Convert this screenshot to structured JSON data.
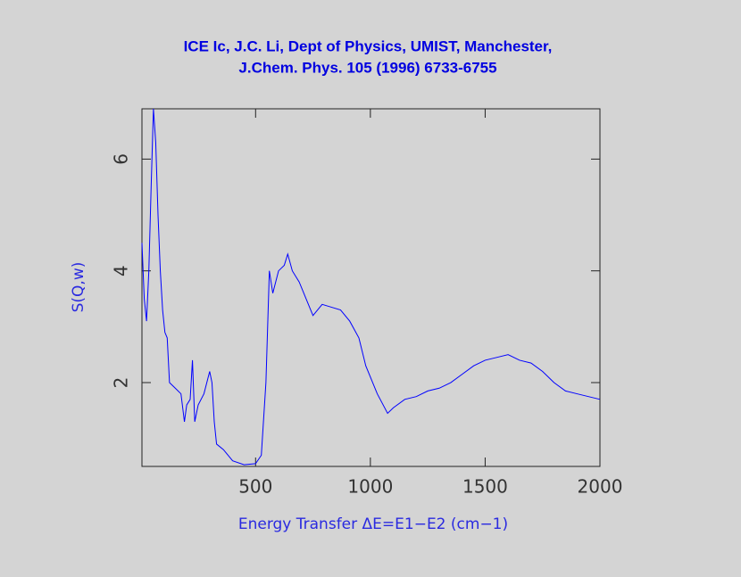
{
  "chart_data": {
    "type": "line",
    "title": [
      "ICE Ic, J.C. Li, Dept of Physics, UMIST, Manchester,",
      "J.Chem. Phys. 105 (1996) 6733-6755"
    ],
    "xlabel": "Energy Transfer ΔE=E1−E2 (cm−1)",
    "ylabel": "S(Q,w)",
    "xlim": [
      5,
      2000
    ],
    "ylim": [
      0.5,
      6.9
    ],
    "xticks": [
      500,
      1000,
      1500,
      2000
    ],
    "yticks": [
      2,
      4,
      6
    ],
    "x": [
      5,
      15,
      25,
      35,
      45,
      55,
      65,
      75,
      85,
      95,
      105,
      115,
      125,
      150,
      175,
      190,
      200,
      215,
      225,
      235,
      250,
      275,
      300,
      310,
      320,
      330,
      360,
      400,
      450,
      500,
      525,
      545,
      560,
      575,
      600,
      625,
      640,
      660,
      690,
      720,
      750,
      790,
      830,
      870,
      910,
      950,
      980,
      1030,
      1075,
      1100,
      1150,
      1200,
      1250,
      1300,
      1350,
      1400,
      1450,
      1500,
      1550,
      1600,
      1650,
      1700,
      1750,
      1800,
      1850,
      1900,
      1950,
      2000
    ],
    "series": [
      {
        "color": "#0000ff",
        "values": [
          4.5,
          3.5,
          3.1,
          4.0,
          5.5,
          6.9,
          6.3,
          5.0,
          4.0,
          3.3,
          2.9,
          2.8,
          2.0,
          1.9,
          1.8,
          1.3,
          1.6,
          1.7,
          2.4,
          1.3,
          1.6,
          1.8,
          2.2,
          2.0,
          1.3,
          0.9,
          0.8,
          0.6,
          0.53,
          0.55,
          0.7,
          2.0,
          4.0,
          3.6,
          4.0,
          4.1,
          4.3,
          4.0,
          3.8,
          3.5,
          3.2,
          3.4,
          3.35,
          3.3,
          3.1,
          2.8,
          2.3,
          1.8,
          1.45,
          1.55,
          1.7,
          1.75,
          1.85,
          1.9,
          2.0,
          2.15,
          2.3,
          2.4,
          2.45,
          2.5,
          2.4,
          2.35,
          2.2,
          2.0,
          1.85,
          1.8,
          1.75,
          1.7
        ]
      }
    ]
  }
}
